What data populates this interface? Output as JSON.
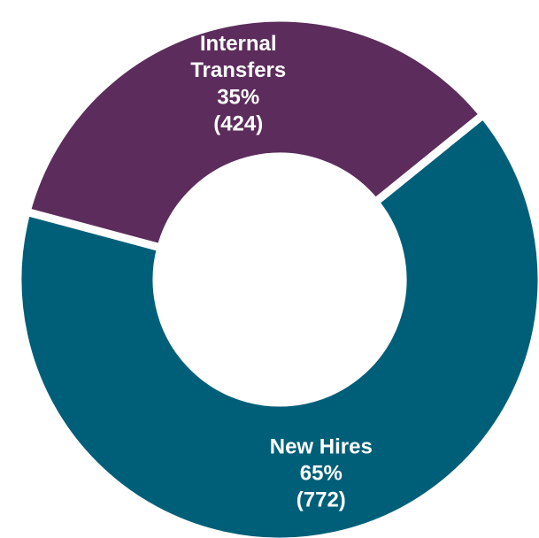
{
  "chart_data": {
    "type": "donut",
    "categories": [
      "Internal Transfers",
      "New Hires"
    ],
    "values": [
      35,
      65
    ],
    "value_labels": [
      "35%",
      "65%"
    ],
    "counts": [
      424,
      772
    ],
    "count_labels": [
      "(424)",
      "(772)"
    ],
    "colors": [
      "#5c2d5c",
      "#005f78"
    ],
    "start_angle": -75
  }
}
